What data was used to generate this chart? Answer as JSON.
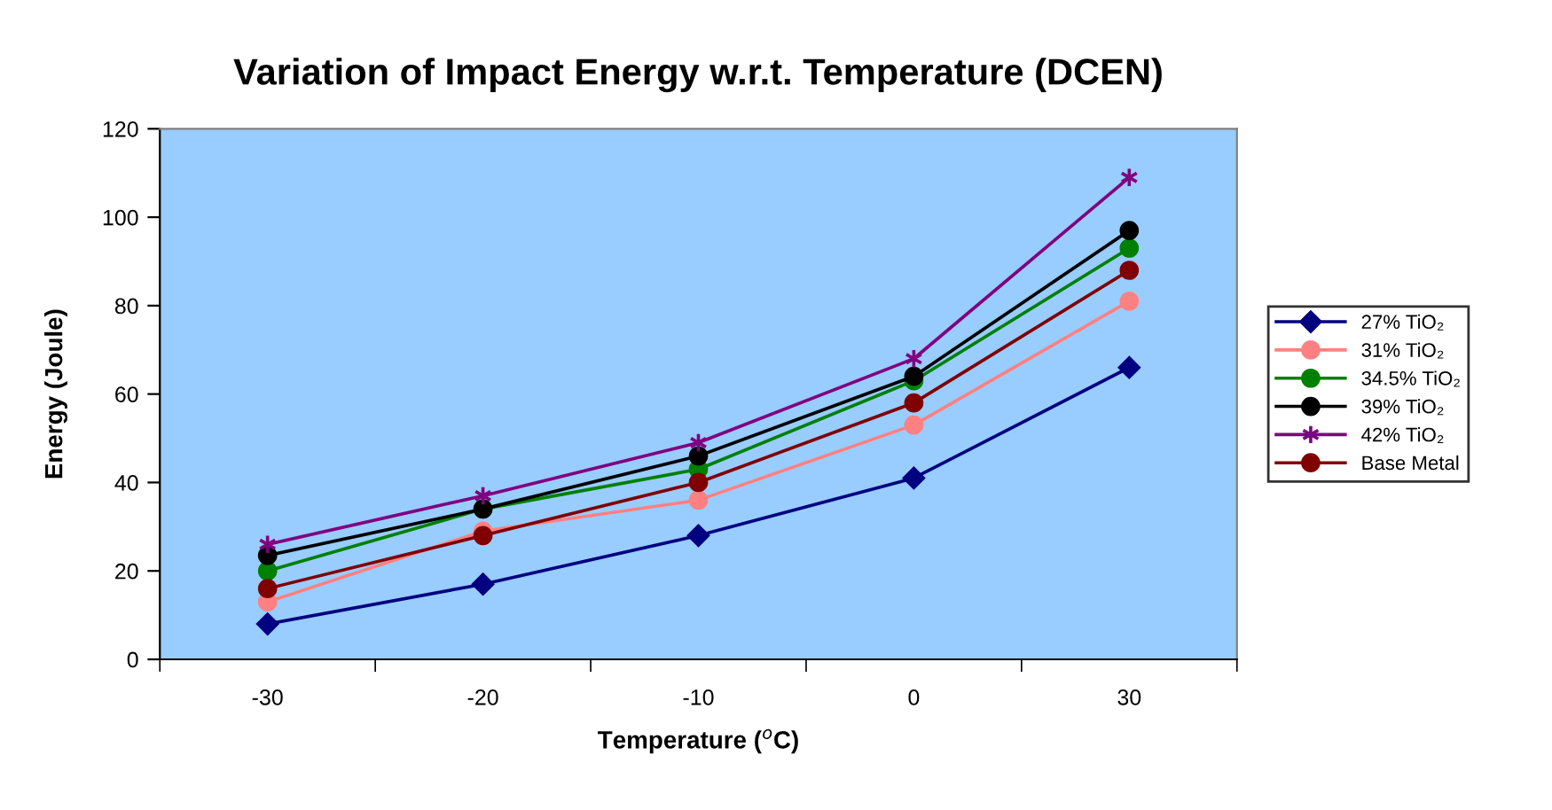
{
  "chart_data": {
    "type": "line",
    "title": "Variation of Impact Energy w.r.t. Temperature (DCEN)",
    "xlabel": "Temperature ($^{o}$C)",
    "ylabel": "Energy (Joule)",
    "categories": [
      "-30",
      "-20",
      "-10",
      "0",
      "30"
    ],
    "series": [
      {
        "name": "27% TiO₂",
        "color": "#000080",
        "marker": "diamond",
        "values": [
          8,
          17,
          28,
          41,
          66
        ]
      },
      {
        "name": "31% TiO₂",
        "color": "#ff8080",
        "marker": "circle",
        "values": [
          13,
          29,
          36,
          53,
          81
        ]
      },
      {
        "name": "34.5% TiO₂",
        "color": "#008000",
        "marker": "circle",
        "values": [
          20,
          34,
          43,
          63,
          93
        ]
      },
      {
        "name": "39% TiO₂",
        "color": "#000000",
        "marker": "circle",
        "values": [
          23.5,
          34,
          46,
          64,
          97
        ]
      },
      {
        "name": "42% TiO₂",
        "color": "#800080",
        "marker": "cross",
        "values": [
          26,
          37,
          49,
          68,
          109
        ]
      },
      {
        "name": "Base Metal",
        "color": "#800000",
        "marker": "circle",
        "values": [
          16,
          28,
          40,
          58,
          88
        ]
      }
    ],
    "ylim": [
      0,
      120
    ],
    "yticks": [
      0,
      20,
      40,
      60,
      80,
      100,
      120
    ],
    "grid": false,
    "legend": "right",
    "line_style": "solid"
  }
}
